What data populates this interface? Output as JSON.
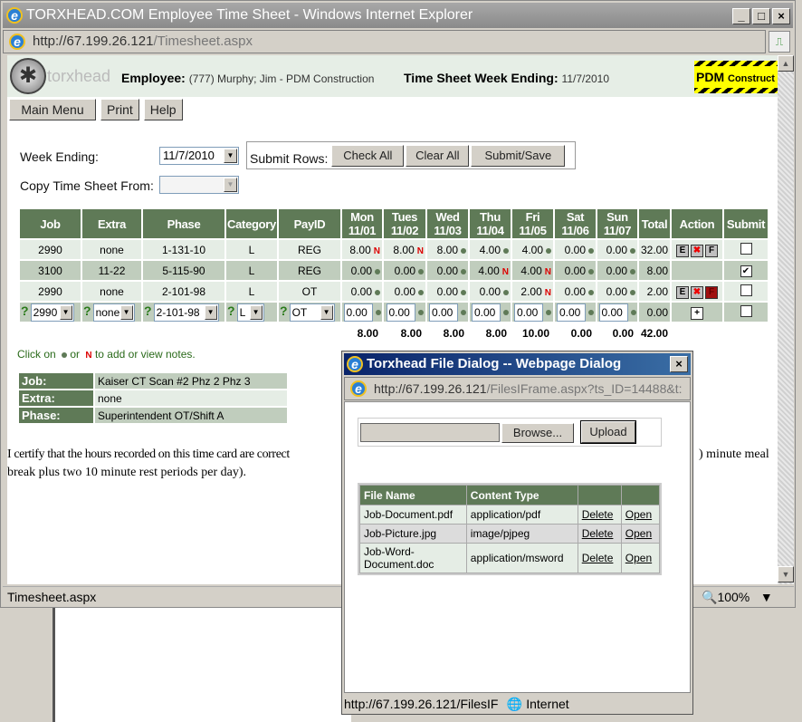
{
  "window": {
    "title": "TORXHEAD.COM Employee Time Sheet - Windows Internet Explorer",
    "url_host": "http://67.199.26.121",
    "url_path": "/Timesheet.aspx",
    "status": "Timesheet.aspx",
    "zoom": "100%"
  },
  "header": {
    "logo_text": "torxhead",
    "employee_label": "Employee:",
    "employee_value": "(777) Murphy; Jim - PDM Construction",
    "week_label": "Time Sheet Week Ending:",
    "week_value": "11/7/2010",
    "brand_logo": "PDM Construct"
  },
  "nav": {
    "main_menu": "Main Menu",
    "print": "Print",
    "help": "Help"
  },
  "form": {
    "week_ending_label": "Week Ending:",
    "week_ending_value": "11/7/2010",
    "copy_label": "Copy Time Sheet From:",
    "copy_value": "",
    "submit_rows_label": "Submit Rows:",
    "check_all": "Check All",
    "clear_all": "Clear All",
    "submit_save": "Submit/Save"
  },
  "timesheet": {
    "columns": [
      "Job",
      "Extra",
      "Phase",
      "Category",
      "PayID",
      "Mon 11/01",
      "Tues 11/02",
      "Wed 11/03",
      "Thu 11/04",
      "Fri 11/05",
      "Sat 11/06",
      "Sun 11/07",
      "Total",
      "Action",
      "Submit"
    ],
    "rows": [
      {
        "job": "2990",
        "extra": "none",
        "phase": "1-131-10",
        "category": "L",
        "payid": "REG",
        "days": [
          "8.00",
          "8.00",
          "8.00",
          "4.00",
          "4.00",
          "0.00",
          "0.00"
        ],
        "notes": [
          "N",
          "N",
          "dot",
          "dot",
          "dot",
          "dot",
          "dot"
        ],
        "total": "32.00",
        "actions": [
          "E",
          "X",
          "F"
        ],
        "f_active": false,
        "submit": false
      },
      {
        "job": "3100",
        "extra": "11-22",
        "phase": "5-115-90",
        "category": "L",
        "payid": "REG",
        "days": [
          "0.00",
          "0.00",
          "0.00",
          "4.00",
          "4.00",
          "0.00",
          "0.00"
        ],
        "notes": [
          "dot",
          "dot",
          "dot",
          "N",
          "N",
          "dot",
          "dot"
        ],
        "total": "8.00",
        "actions": [],
        "f_active": false,
        "submit": true
      },
      {
        "job": "2990",
        "extra": "none",
        "phase": "2-101-98",
        "category": "L",
        "payid": "OT",
        "days": [
          "0.00",
          "0.00",
          "0.00",
          "0.00",
          "2.00",
          "0.00",
          "0.00"
        ],
        "notes": [
          "dot",
          "dot",
          "dot",
          "dot",
          "N",
          "dot",
          "dot"
        ],
        "total": "2.00",
        "actions": [
          "E",
          "X",
          "F"
        ],
        "f_active": true,
        "submit": false
      }
    ],
    "new_row": {
      "job": "2990",
      "extra": "none",
      "phase": "2-101-98",
      "category": "L",
      "payid": "OT",
      "days": [
        "0.00",
        "0.00",
        "0.00",
        "0.00",
        "0.00",
        "0.00",
        "0.00"
      ],
      "total": "0.00",
      "help": "?",
      "add": "+"
    },
    "totals": [
      "8.00",
      "8.00",
      "8.00",
      "8.00",
      "10.00",
      "0.00",
      "0.00",
      "42.00"
    ]
  },
  "notes_hint": {
    "a": "Click on",
    "b": "or",
    "n": "N",
    "c": "to add or view notes."
  },
  "details": [
    {
      "label": "Job:",
      "value": "Kaiser CT Scan #2 Phz 2 Phz 3"
    },
    {
      "label": "Extra:",
      "value": "none"
    },
    {
      "label": "Phase:",
      "value": "Superintendent OT/Shift A"
    }
  ],
  "certify": {
    "line1": "I certify that the hours recorded on this time card are correct",
    "line1_end": ") minute meal",
    "line2": "break plus two 10 minute rest periods per day)."
  },
  "dialog": {
    "title": "Torxhead File Dialog -- Webpage Dialog",
    "url_host": "http://67.199.26.121",
    "url_path": "/FilesIFrame.aspx?ts_ID=14488&t:",
    "browse": "Browse...",
    "upload": "Upload",
    "columns": [
      "File Name",
      "Content Type"
    ],
    "files": [
      {
        "name": "Job-Document.pdf",
        "type": "application/pdf"
      },
      {
        "name": "Job-Picture.jpg",
        "type": "image/pjpeg"
      },
      {
        "name": "Job-Word-Document.doc",
        "type": "application/msword"
      }
    ],
    "delete": "Delete",
    "open": "Open",
    "status_url": "http://67.199.26.121/FilesIF",
    "zone": "Internet"
  }
}
